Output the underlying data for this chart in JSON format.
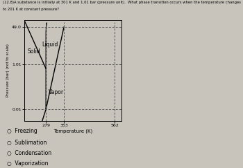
{
  "title_line1": "(12.8)A substance is initially at 301 K and 1.01 bar (pressure unit).  What phase transition occurs when the temperature changes",
  "title_line2": "to 201 K at constant pressure?",
  "xlabel": "Temperature (K)",
  "ylabel": "Pressure (bar) (not to scale)",
  "x_ticks": [
    279,
    353,
    562
  ],
  "y_ticks": [
    0.01,
    1.01,
    49.0
  ],
  "y_tick_labels": [
    "0.01",
    "1.01",
    "49.0"
  ],
  "triple_point_T": 279,
  "triple_point_P": 0.01,
  "critical_point_T": 353,
  "critical_point_P": 49.0,
  "xmin": 190,
  "xmax": 590,
  "p_marked": 1.01,
  "p_low": 0.01,
  "p_high": 49.0,
  "bg_color": "#c8c4bc",
  "plot_bg": "#c8c4bc",
  "answer_options": [
    "Freezing",
    "Sublimation",
    "Condensation",
    "Vaporization"
  ],
  "labels": {
    "solid": "Solid",
    "liquid": "Liquid",
    "vapor": "Vapor"
  }
}
